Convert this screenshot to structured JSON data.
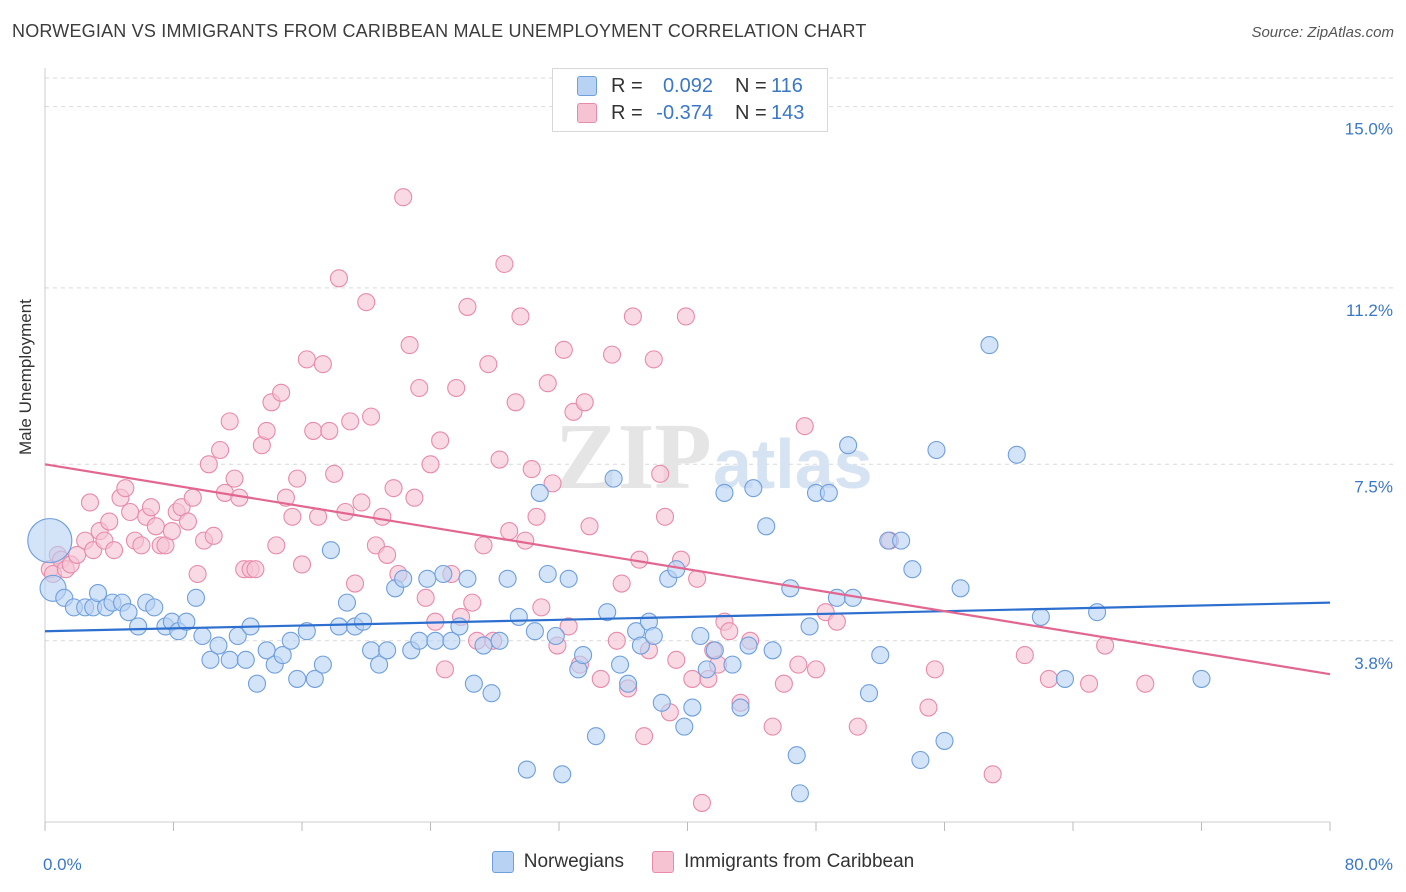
{
  "title": "NORWEGIAN VS IMMIGRANTS FROM CARIBBEAN MALE UNEMPLOYMENT CORRELATION CHART",
  "source": "Source: ZipAtlas.com",
  "watermark": {
    "zip": "ZIP",
    "atlas": "atlas"
  },
  "legend": {
    "rows": [
      {
        "r_label": "R =",
        "r_value": "0.092",
        "n_label": "N =",
        "n_value": "116"
      },
      {
        "r_label": "R =",
        "r_value": "-0.374",
        "n_label": "N =",
        "n_value": "143"
      }
    ]
  },
  "colors": {
    "blue_fill": "#b8d2f3",
    "blue_stroke": "#6f9fdc",
    "blue_line": "#2c6fcf",
    "pink_fill": "#f6c3d3",
    "pink_stroke": "#e88aaa",
    "pink_line": "#e2668f",
    "grid": "#d9d9d9",
    "tick_label": "#3a78c7"
  },
  "chart_data": {
    "type": "scatter",
    "title": "NORWEGIAN VS IMMIGRANTS FROM CARIBBEAN MALE UNEMPLOYMENT CORRELATION CHART",
    "xlabel": "",
    "ylabel": "Male Unemployment",
    "xlim": [
      0,
      80
    ],
    "ylim": [
      0,
      15.6
    ],
    "x_tick_labels": [
      "0.0%",
      "80.0%"
    ],
    "y_ticks": [
      3.8,
      7.5,
      11.2,
      15.0
    ],
    "y_tick_labels": [
      "3.8%",
      "7.5%",
      "11.2%",
      "15.0%"
    ],
    "grid": true,
    "legend_position": "top-center",
    "series": [
      {
        "name": "Norwegians",
        "color": "#6f9fdc",
        "trend": {
          "x": [
            0,
            80
          ],
          "y": [
            4.0,
            4.6
          ]
        },
        "points": [
          [
            0.3,
            5.9
          ],
          [
            0.5,
            4.9
          ],
          [
            1.2,
            4.7
          ],
          [
            1.8,
            4.5
          ],
          [
            2.5,
            4.5
          ],
          [
            3.0,
            4.5
          ],
          [
            3.3,
            4.8
          ],
          [
            3.8,
            4.5
          ],
          [
            4.2,
            4.6
          ],
          [
            4.8,
            4.6
          ],
          [
            5.2,
            4.4
          ],
          [
            5.8,
            4.1
          ],
          [
            6.3,
            4.6
          ],
          [
            6.8,
            4.5
          ],
          [
            7.5,
            4.1
          ],
          [
            7.9,
            4.2
          ],
          [
            8.3,
            4.0
          ],
          [
            8.8,
            4.2
          ],
          [
            9.4,
            4.7
          ],
          [
            9.8,
            3.9
          ],
          [
            10.3,
            3.4
          ],
          [
            10.8,
            3.7
          ],
          [
            11.5,
            3.4
          ],
          [
            12.0,
            3.9
          ],
          [
            12.5,
            3.4
          ],
          [
            12.8,
            4.1
          ],
          [
            13.2,
            2.9
          ],
          [
            13.8,
            3.6
          ],
          [
            14.3,
            3.3
          ],
          [
            14.8,
            3.5
          ],
          [
            15.3,
            3.8
          ],
          [
            15.7,
            3.0
          ],
          [
            16.3,
            4.0
          ],
          [
            16.8,
            3.0
          ],
          [
            17.3,
            3.3
          ],
          [
            17.8,
            5.7
          ],
          [
            18.3,
            4.1
          ],
          [
            18.8,
            4.6
          ],
          [
            19.3,
            4.1
          ],
          [
            19.8,
            4.2
          ],
          [
            20.3,
            3.6
          ],
          [
            20.8,
            3.3
          ],
          [
            21.3,
            3.6
          ],
          [
            21.8,
            4.9
          ],
          [
            22.3,
            5.1
          ],
          [
            22.8,
            3.6
          ],
          [
            23.3,
            3.8
          ],
          [
            23.8,
            5.1
          ],
          [
            24.3,
            3.8
          ],
          [
            24.8,
            5.2
          ],
          [
            25.3,
            3.8
          ],
          [
            25.8,
            4.1
          ],
          [
            26.3,
            5.1
          ],
          [
            26.7,
            2.9
          ],
          [
            27.3,
            3.7
          ],
          [
            27.8,
            2.7
          ],
          [
            28.3,
            3.8
          ],
          [
            28.8,
            5.1
          ],
          [
            29.5,
            4.3
          ],
          [
            30.0,
            1.1
          ],
          [
            30.5,
            4.0
          ],
          [
            30.8,
            6.9
          ],
          [
            31.3,
            5.2
          ],
          [
            31.8,
            3.9
          ],
          [
            32.2,
            1.0
          ],
          [
            32.6,
            5.1
          ],
          [
            33.2,
            3.2
          ],
          [
            33.5,
            3.5
          ],
          [
            34.3,
            1.8
          ],
          [
            35.0,
            4.4
          ],
          [
            35.4,
            7.2
          ],
          [
            35.8,
            3.3
          ],
          [
            36.3,
            2.9
          ],
          [
            36.8,
            4.0
          ],
          [
            37.1,
            3.7
          ],
          [
            37.6,
            4.2
          ],
          [
            37.9,
            3.9
          ],
          [
            38.4,
            2.5
          ],
          [
            38.8,
            5.1
          ],
          [
            39.3,
            5.3
          ],
          [
            39.8,
            2.0
          ],
          [
            40.3,
            2.4
          ],
          [
            40.8,
            3.9
          ],
          [
            41.2,
            3.2
          ],
          [
            41.7,
            3.6
          ],
          [
            42.3,
            6.9
          ],
          [
            42.8,
            3.3
          ],
          [
            43.3,
            2.4
          ],
          [
            43.8,
            3.7
          ],
          [
            44.1,
            7.0
          ],
          [
            44.9,
            6.2
          ],
          [
            45.3,
            3.6
          ],
          [
            46.4,
            4.9
          ],
          [
            46.8,
            1.4
          ],
          [
            47.0,
            0.6
          ],
          [
            47.6,
            4.1
          ],
          [
            48.0,
            6.9
          ],
          [
            48.8,
            6.9
          ],
          [
            49.3,
            4.7
          ],
          [
            50.0,
            7.9
          ],
          [
            50.3,
            4.7
          ],
          [
            51.3,
            2.7
          ],
          [
            52.0,
            3.5
          ],
          [
            52.5,
            5.9
          ],
          [
            53.3,
            5.9
          ],
          [
            54.0,
            5.3
          ],
          [
            54.5,
            1.3
          ],
          [
            55.5,
            7.8
          ],
          [
            56.0,
            1.7
          ],
          [
            57.0,
            4.9
          ],
          [
            58.8,
            10.0
          ],
          [
            60.5,
            7.7
          ],
          [
            62.0,
            4.3
          ],
          [
            63.5,
            3.0
          ],
          [
            65.5,
            4.4
          ],
          [
            72.0,
            3.0
          ]
        ]
      },
      {
        "name": "Immigrants from Caribbean",
        "color": "#e88aaa",
        "trend": {
          "x": [
            0,
            80
          ],
          "y": [
            7.5,
            3.1
          ]
        },
        "points": [
          [
            0.3,
            5.3
          ],
          [
            0.5,
            5.2
          ],
          [
            0.8,
            5.6
          ],
          [
            1.0,
            5.5
          ],
          [
            1.3,
            5.3
          ],
          [
            1.6,
            5.4
          ],
          [
            2.0,
            5.6
          ],
          [
            2.5,
            5.9
          ],
          [
            2.8,
            6.7
          ],
          [
            3.0,
            5.7
          ],
          [
            3.4,
            6.1
          ],
          [
            3.7,
            5.9
          ],
          [
            4.0,
            6.3
          ],
          [
            4.3,
            5.7
          ],
          [
            4.7,
            6.8
          ],
          [
            5.0,
            7.0
          ],
          [
            5.3,
            6.5
          ],
          [
            5.6,
            5.9
          ],
          [
            6.0,
            5.8
          ],
          [
            6.3,
            6.4
          ],
          [
            6.6,
            6.6
          ],
          [
            6.9,
            6.2
          ],
          [
            7.2,
            5.8
          ],
          [
            7.5,
            5.8
          ],
          [
            7.9,
            6.1
          ],
          [
            8.2,
            6.5
          ],
          [
            8.5,
            6.6
          ],
          [
            8.9,
            6.3
          ],
          [
            9.2,
            6.8
          ],
          [
            9.5,
            5.2
          ],
          [
            9.9,
            5.9
          ],
          [
            10.2,
            7.5
          ],
          [
            10.5,
            6.0
          ],
          [
            10.9,
            7.8
          ],
          [
            11.2,
            6.9
          ],
          [
            11.5,
            8.4
          ],
          [
            11.8,
            7.2
          ],
          [
            12.1,
            6.8
          ],
          [
            12.4,
            5.3
          ],
          [
            12.8,
            5.3
          ],
          [
            13.1,
            5.3
          ],
          [
            13.5,
            7.9
          ],
          [
            13.8,
            8.2
          ],
          [
            14.1,
            8.8
          ],
          [
            14.4,
            5.8
          ],
          [
            14.7,
            9.0
          ],
          [
            15.0,
            6.8
          ],
          [
            15.4,
            6.4
          ],
          [
            15.7,
            7.2
          ],
          [
            16.0,
            5.4
          ],
          [
            16.3,
            9.7
          ],
          [
            16.7,
            8.2
          ],
          [
            17.0,
            6.4
          ],
          [
            17.3,
            9.6
          ],
          [
            17.7,
            8.2
          ],
          [
            18.0,
            7.3
          ],
          [
            18.3,
            11.4
          ],
          [
            18.7,
            6.5
          ],
          [
            19.0,
            8.4
          ],
          [
            19.3,
            5.0
          ],
          [
            19.7,
            6.7
          ],
          [
            20.0,
            10.9
          ],
          [
            20.3,
            8.5
          ],
          [
            20.6,
            5.8
          ],
          [
            21.0,
            6.4
          ],
          [
            21.3,
            5.6
          ],
          [
            21.7,
            7.0
          ],
          [
            22.0,
            5.2
          ],
          [
            22.3,
            13.1
          ],
          [
            22.7,
            10.0
          ],
          [
            23.0,
            6.8
          ],
          [
            23.3,
            9.1
          ],
          [
            23.7,
            4.7
          ],
          [
            24.0,
            7.5
          ],
          [
            24.3,
            4.2
          ],
          [
            24.6,
            8.0
          ],
          [
            24.9,
            3.2
          ],
          [
            25.3,
            5.2
          ],
          [
            25.6,
            9.1
          ],
          [
            25.9,
            4.3
          ],
          [
            26.3,
            10.8
          ],
          [
            26.6,
            4.6
          ],
          [
            26.9,
            3.8
          ],
          [
            27.3,
            5.8
          ],
          [
            27.6,
            9.6
          ],
          [
            27.9,
            3.8
          ],
          [
            28.3,
            7.6
          ],
          [
            28.6,
            11.7
          ],
          [
            28.9,
            6.1
          ],
          [
            29.3,
            8.8
          ],
          [
            29.6,
            10.6
          ],
          [
            29.9,
            5.9
          ],
          [
            30.3,
            7.4
          ],
          [
            30.6,
            6.4
          ],
          [
            30.9,
            4.5
          ],
          [
            31.3,
            9.2
          ],
          [
            31.6,
            7.1
          ],
          [
            31.9,
            3.7
          ],
          [
            32.3,
            9.9
          ],
          [
            32.6,
            4.1
          ],
          [
            32.9,
            8.6
          ],
          [
            33.3,
            3.3
          ],
          [
            33.6,
            8.8
          ],
          [
            33.9,
            6.2
          ],
          [
            34.6,
            3.0
          ],
          [
            35.3,
            9.8
          ],
          [
            35.6,
            3.8
          ],
          [
            35.9,
            5.0
          ],
          [
            36.3,
            2.8
          ],
          [
            36.6,
            10.6
          ],
          [
            37.0,
            5.5
          ],
          [
            37.3,
            1.8
          ],
          [
            37.6,
            3.6
          ],
          [
            37.9,
            9.7
          ],
          [
            38.3,
            7.3
          ],
          [
            38.6,
            6.4
          ],
          [
            38.9,
            2.3
          ],
          [
            39.3,
            3.4
          ],
          [
            39.6,
            5.5
          ],
          [
            39.9,
            10.6
          ],
          [
            40.3,
            3.0
          ],
          [
            40.6,
            5.1
          ],
          [
            40.9,
            0.4
          ],
          [
            41.3,
            3.0
          ],
          [
            41.6,
            3.6
          ],
          [
            41.9,
            3.3
          ],
          [
            42.3,
            4.2
          ],
          [
            42.6,
            4.0
          ],
          [
            43.3,
            2.5
          ],
          [
            43.9,
            3.8
          ],
          [
            45.3,
            2.0
          ],
          [
            46.0,
            2.9
          ],
          [
            46.9,
            3.3
          ],
          [
            47.3,
            8.3
          ],
          [
            48.0,
            3.2
          ],
          [
            48.6,
            4.4
          ],
          [
            49.3,
            4.2
          ],
          [
            50.6,
            2.0
          ],
          [
            52.6,
            5.9
          ],
          [
            55.0,
            2.4
          ],
          [
            55.4,
            3.2
          ],
          [
            59.0,
            1.0
          ],
          [
            61.0,
            3.5
          ],
          [
            62.5,
            3.0
          ],
          [
            65.0,
            2.9
          ],
          [
            66.0,
            3.7
          ],
          [
            68.5,
            2.9
          ]
        ]
      }
    ]
  },
  "bottom_legend": [
    "Norwegians",
    "Immigrants from Caribbean"
  ]
}
